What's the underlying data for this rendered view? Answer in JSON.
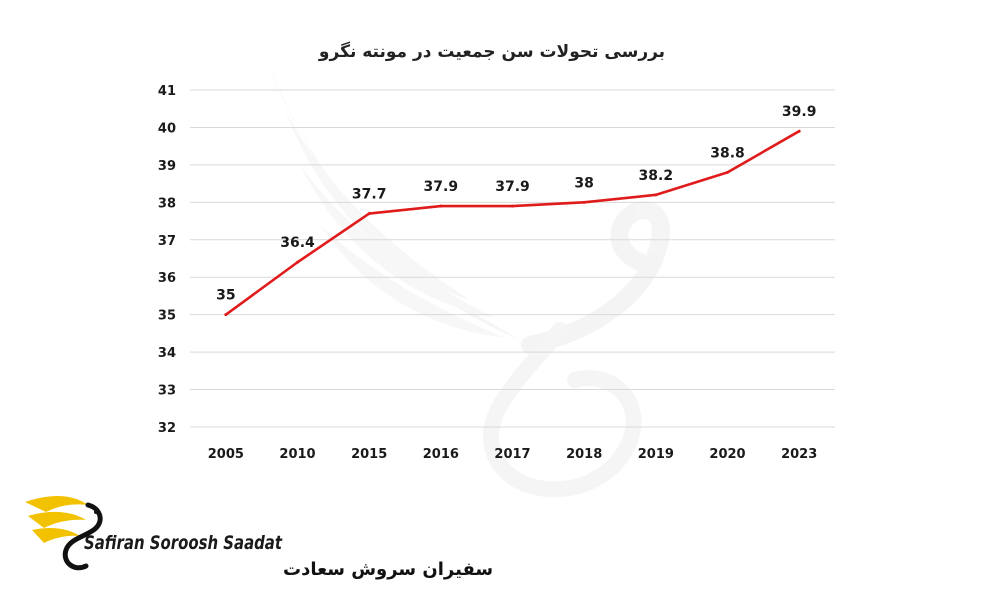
{
  "chart_data": {
    "type": "line",
    "title": "بررسی تحولات سن جمعیت در مونته نگرو",
    "xlabel": "",
    "ylabel": "",
    "categories": [
      "2005",
      "2010",
      "2015",
      "2016",
      "2017",
      "2018",
      "2019",
      "2020",
      "2023"
    ],
    "series": [
      {
        "values": [
          35,
          36.4,
          37.7,
          37.9,
          37.9,
          38,
          38.2,
          38.8,
          39.9
        ],
        "color": "#e01b1b"
      }
    ],
    "data_labels": [
      "35",
      "36.4",
      "37.7",
      "37.9",
      "37.9",
      "38",
      "38.2",
      "38.8",
      "39.9"
    ],
    "ylim": [
      32,
      41
    ],
    "yticks": [
      "32",
      "33",
      "34",
      "35",
      "36",
      "37",
      "38",
      "39",
      "40",
      "41"
    ],
    "grid": "horizontal",
    "legend": "none"
  },
  "logo": {
    "text_latin": "Safiran Soroosh Saadat",
    "text_persian": "سفیران سروش سعادت",
    "accent_color": "#f2c200",
    "icon": "winged-swan-icon"
  },
  "watermark": {
    "icon": "swan-wing-watermark-icon"
  }
}
